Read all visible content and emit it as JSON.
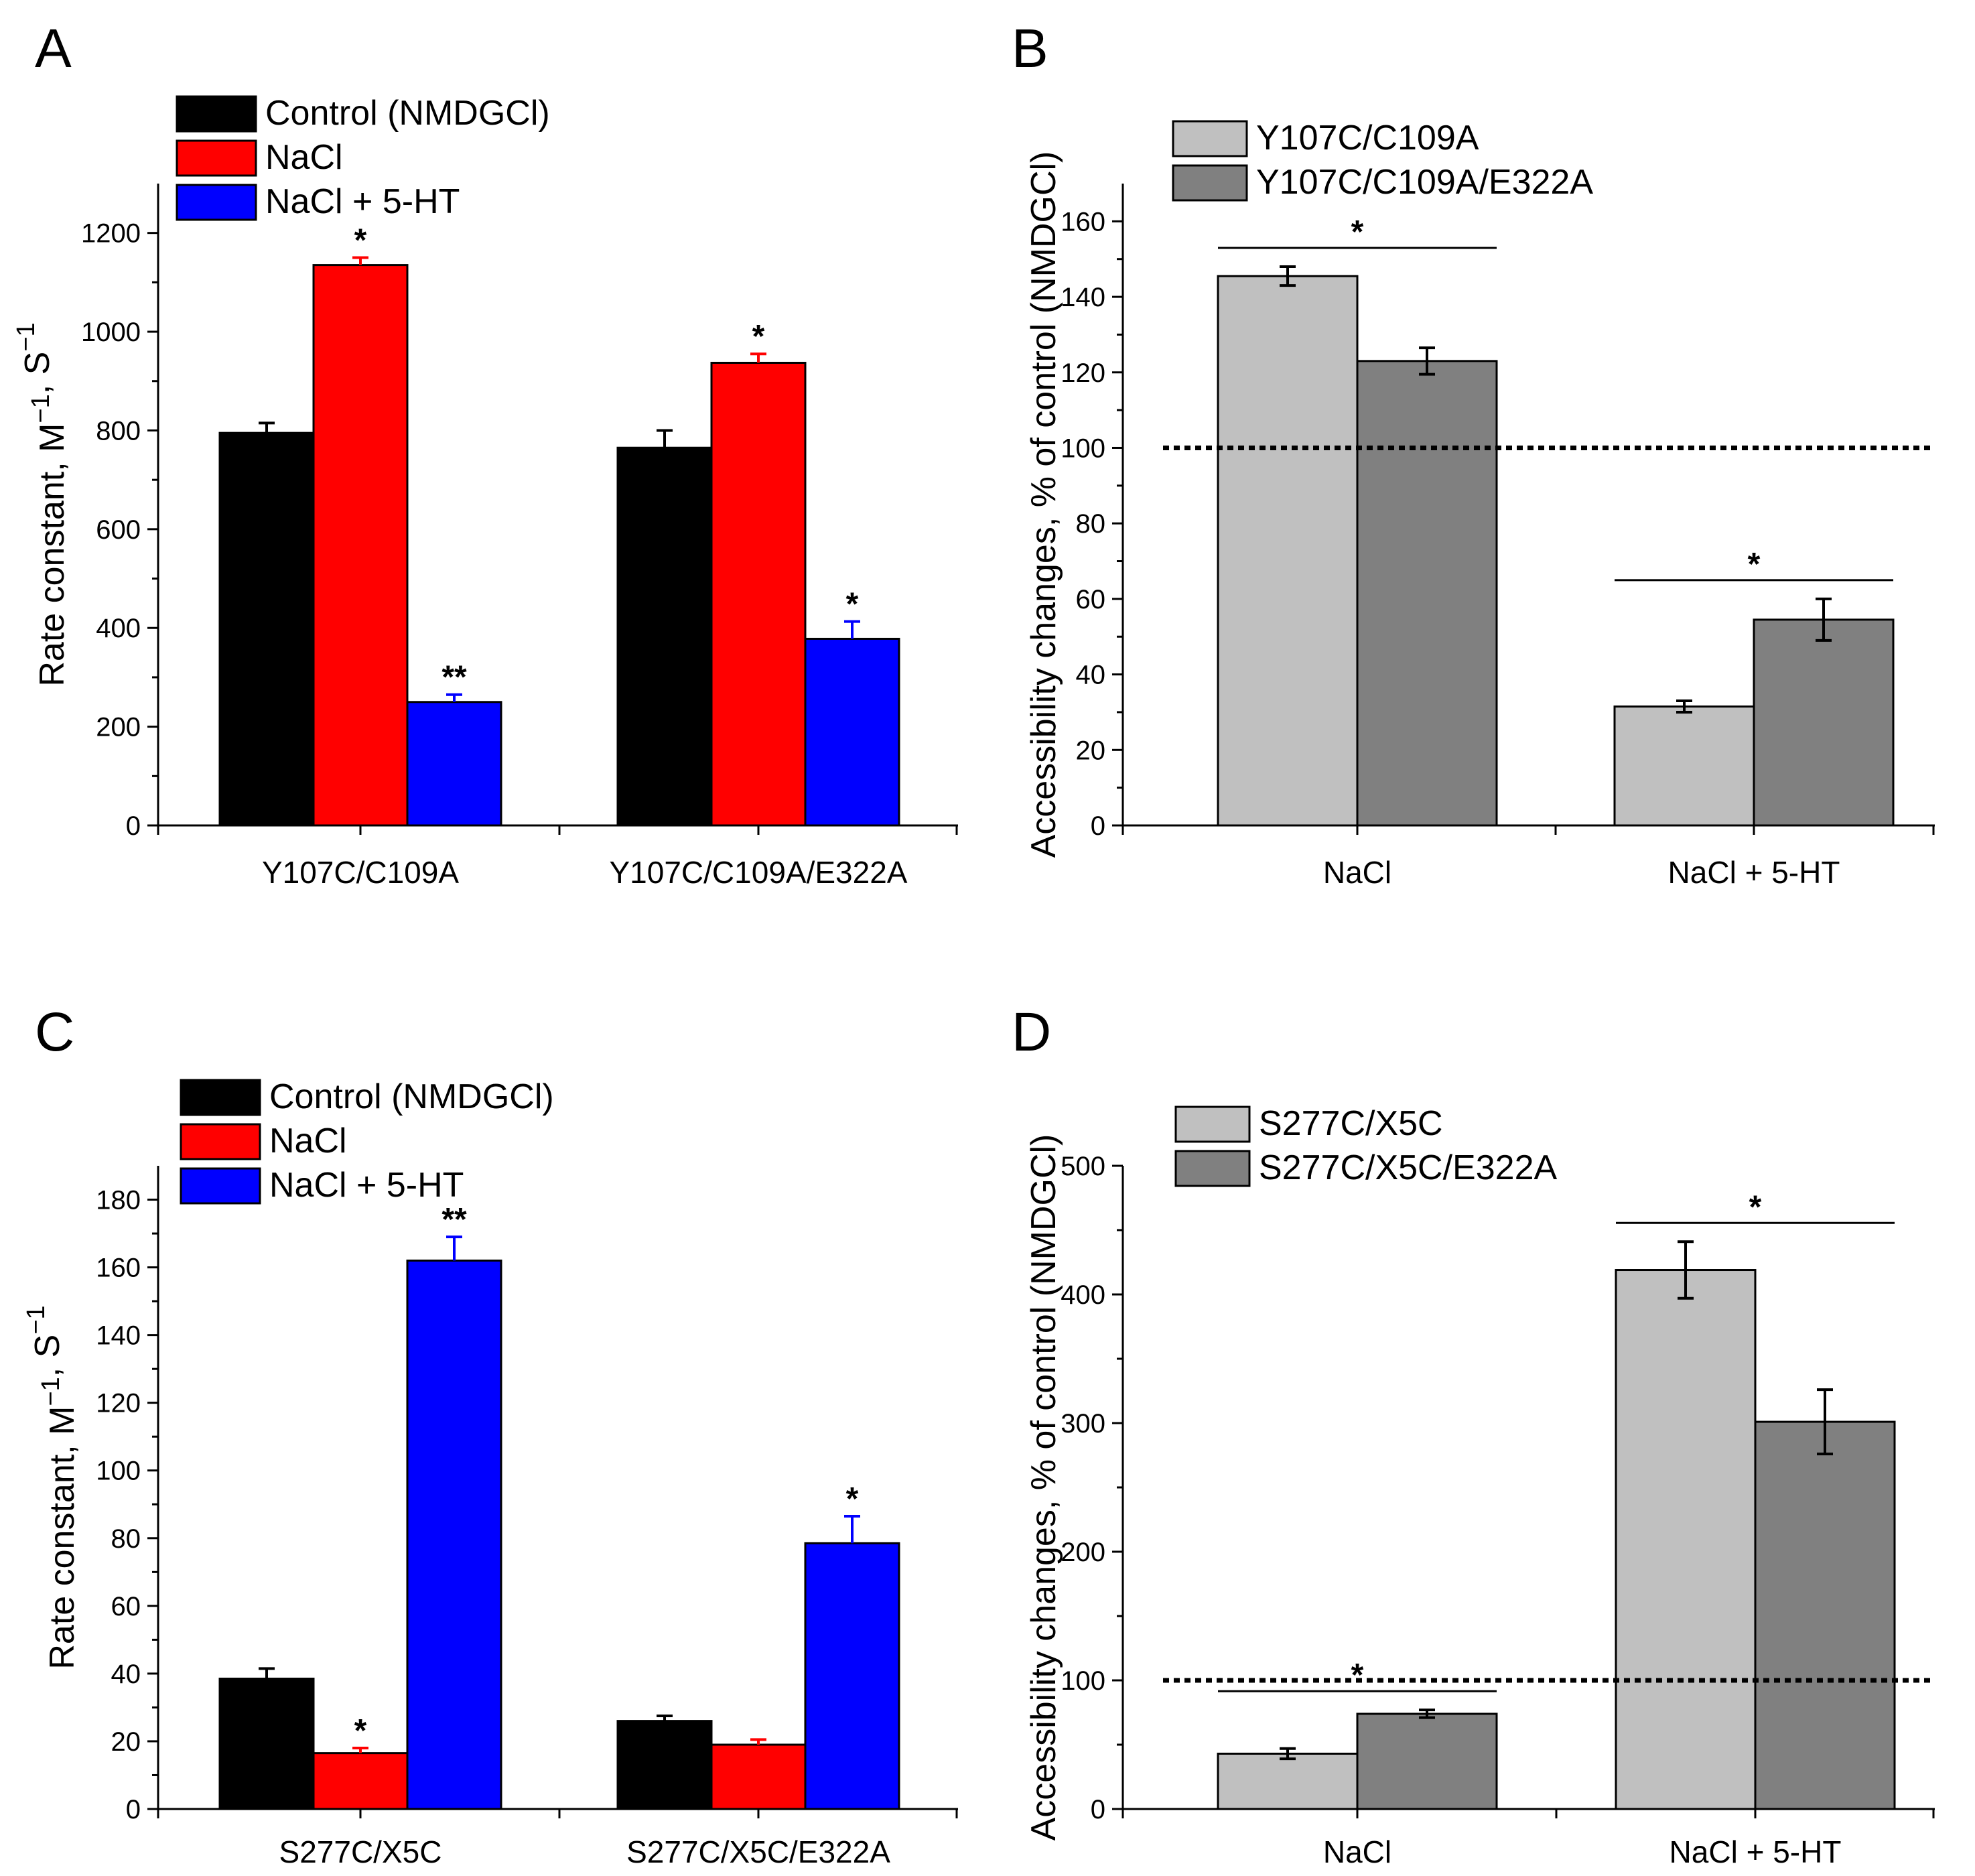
{
  "chart_data": [
    {
      "panel": "A",
      "type": "bar",
      "ylabel": "Rate constant, M−1, S−1",
      "ylim": [
        0,
        1300
      ],
      "yticks": [
        0,
        200,
        400,
        600,
        800,
        1000,
        1200
      ],
      "categories": [
        "Y107C/C109A",
        "Y107C/C109A/E322A"
      ],
      "series": [
        {
          "name": "Control (NMDGCl)",
          "color": "#000000",
          "values": [
            795,
            765
          ],
          "errors": [
            20,
            35
          ],
          "stars": [
            "",
            ""
          ]
        },
        {
          "name": "NaCl",
          "color": "#ff0000",
          "values": [
            1135,
            937
          ],
          "errors": [
            15,
            18
          ],
          "stars": [
            "*",
            "*"
          ]
        },
        {
          "name": "NaCl + 5-HT",
          "color": "#0000ff",
          "values": [
            250,
            378
          ],
          "errors": [
            15,
            35
          ],
          "stars": [
            "**",
            "*"
          ]
        }
      ],
      "legend_position": "top-left"
    },
    {
      "panel": "B",
      "type": "bar",
      "ylabel": "Accessibility changes, % of control (NMDGCl)",
      "ylim": [
        0,
        170
      ],
      "yticks": [
        0,
        20,
        40,
        60,
        80,
        100,
        120,
        140,
        160
      ],
      "categories": [
        "NaCl",
        "NaCl + 5-HT"
      ],
      "series": [
        {
          "name": "Y107C/C109A",
          "color": "#c0c0c0",
          "values": [
            145.5,
            31.5
          ],
          "errors": [
            2.5,
            1.5
          ]
        },
        {
          "name": "Y107C/C109A/E322A",
          "color": "#808080",
          "values": [
            123,
            54.5
          ],
          "errors": [
            3.5,
            5.5
          ]
        }
      ],
      "reference_line": 100,
      "significance_star": "*",
      "legend_position": "top-left"
    },
    {
      "panel": "C",
      "type": "bar",
      "ylabel": "Rate constant, M−1, S−1",
      "ylim": [
        0,
        190
      ],
      "yticks": [
        0,
        20,
        40,
        60,
        80,
        100,
        120,
        140,
        160,
        180
      ],
      "categories": [
        "S277C/X5C",
        "S277C/X5C/E322A"
      ],
      "series": [
        {
          "name": "Control (NMDGCl)",
          "color": "#000000",
          "values": [
            38.5,
            26
          ],
          "errors": [
            3,
            1.5
          ],
          "stars": [
            "",
            ""
          ]
        },
        {
          "name": "NaCl",
          "color": "#ff0000",
          "values": [
            16.5,
            19
          ],
          "errors": [
            1.5,
            1.5
          ],
          "stars": [
            "*",
            ""
          ]
        },
        {
          "name": "NaCl + 5-HT",
          "color": "#0000ff",
          "values": [
            162,
            78.5
          ],
          "errors": [
            7,
            8
          ],
          "stars": [
            "**",
            "*"
          ]
        }
      ],
      "legend_position": "top-left"
    },
    {
      "panel": "D",
      "type": "bar",
      "ylabel": "Accessibility changes, % of control (NMDGCl)",
      "ylim": [
        0,
        500
      ],
      "yticks": [
        0,
        100,
        200,
        300,
        400,
        500
      ],
      "categories": [
        "NaCl",
        "NaCl + 5-HT"
      ],
      "series": [
        {
          "name": "S277C/X5C",
          "color": "#c0c0c0",
          "values": [
            43,
            419
          ],
          "errors": [
            4,
            22
          ]
        },
        {
          "name": "S277C/X5C/E322A",
          "color": "#808080",
          "values": [
            74,
            301
          ],
          "errors": [
            3,
            25
          ]
        }
      ],
      "reference_line": 100,
      "significance_star": "*",
      "legend_position": "top-left"
    }
  ]
}
